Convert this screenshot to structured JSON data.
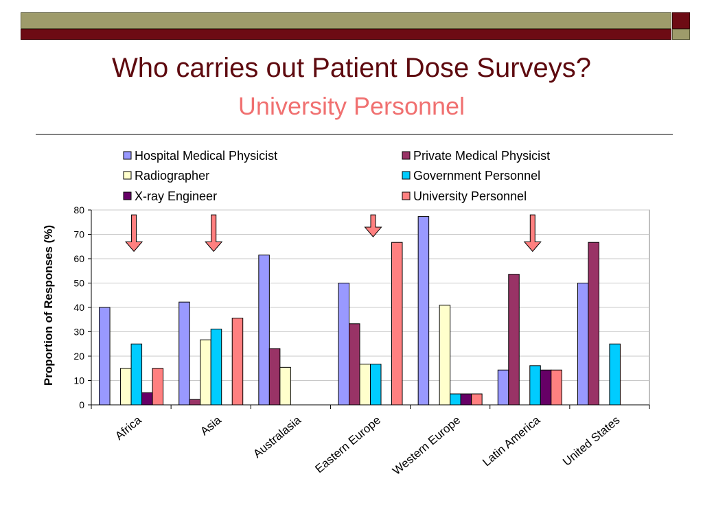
{
  "slide": {
    "title": "Who carries out Patient Dose Surveys?",
    "subtitle": "University Personnel",
    "colors": {
      "title": "#5e0a0f",
      "subtitle": "#f07070",
      "bar_olive": "#9e9b6b",
      "bar_maroon": "#6d0b14"
    }
  },
  "chart_data": {
    "type": "bar",
    "categories": [
      "Africa",
      "Asia",
      "Australasia",
      "Eastern Europe",
      "Western Europe",
      "Latin America",
      "United States"
    ],
    "ylabel": "Proportion of Responses (%)",
    "xlabel": "",
    "ylim": [
      0,
      80
    ],
    "yticks": [
      0,
      10,
      20,
      30,
      40,
      50,
      60,
      70,
      80
    ],
    "grid": true,
    "legend_position": "top",
    "series": [
      {
        "name": "Hospital Medical Physicist",
        "color": "#9999ff",
        "values": [
          40,
          42.2,
          61.5,
          50,
          77.3,
          14.3,
          50
        ]
      },
      {
        "name": "Private Medical Physicist",
        "color": "#993366",
        "values": [
          0,
          2.2,
          23.1,
          33.3,
          0,
          53.6,
          66.7
        ]
      },
      {
        "name": "Radiographer",
        "color": "#ffffcc",
        "values": [
          15,
          26.7,
          15.4,
          16.7,
          40.9,
          0,
          0
        ]
      },
      {
        "name": "Government Personnel",
        "color": "#00ccff",
        "values": [
          25,
          31.1,
          0,
          16.7,
          4.5,
          16.1,
          25
        ]
      },
      {
        "name": "X-ray Engineer",
        "color": "#660066",
        "values": [
          5,
          0,
          0,
          0,
          4.5,
          14.3,
          0
        ]
      },
      {
        "name": "University Personnel",
        "color": "#ff8080",
        "values": [
          15,
          35.6,
          0,
          66.7,
          4.5,
          14.3,
          0
        ]
      }
    ],
    "legend_order": [
      "Hospital Medical Physicist",
      "Private Medical Physicist",
      "Radiographer",
      "Government Personnel",
      "X-ray Engineer",
      "University Personnel"
    ],
    "annotations": [
      {
        "type": "down-arrow",
        "category": "Africa",
        "from": 78,
        "to": 63,
        "color": "#ff8080"
      },
      {
        "type": "down-arrow",
        "category": "Asia",
        "from": 78,
        "to": 63,
        "color": "#ff8080"
      },
      {
        "type": "down-arrow",
        "category": "Eastern Europe",
        "from": 78,
        "to": 69,
        "color": "#ff8080"
      },
      {
        "type": "down-arrow",
        "category": "Latin America",
        "from": 78,
        "to": 63,
        "color": "#ff8080"
      }
    ]
  }
}
